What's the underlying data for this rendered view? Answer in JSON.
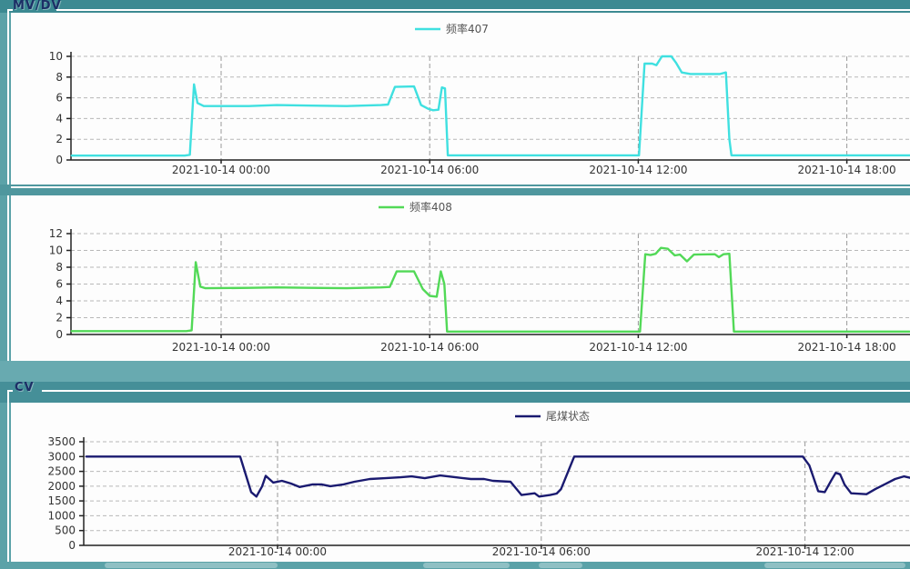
{
  "sections": {
    "mvdv": {
      "label": "MV/DV"
    },
    "cv": {
      "label": "CV"
    }
  },
  "colors": {
    "page_teal": "#5ba2a8",
    "header_bar": "#3c8a92",
    "separator_bar": "#4f979e",
    "gap_teal": "#68aab0",
    "cv_bar": "#458f98",
    "panel_bg": "#fdfdfd",
    "axis": "#222222",
    "grid_horizontal": "#b8b8b8",
    "grid_vertical": "#999999",
    "tick_label": "#333333",
    "legend_text": "#555555"
  },
  "chart_data": [
    {
      "type": "line",
      "legend": "频率407",
      "color": "#3fe0e0",
      "x_unit": "hours since 2021-10-14 00:00",
      "ymax": 10,
      "yticks": [
        0,
        2,
        4,
        6,
        8,
        10
      ],
      "xticks": [
        {
          "t": 0,
          "label": "2021-10-14 00:00"
        },
        {
          "t": 6,
          "label": "2021-10-14 06:00"
        },
        {
          "t": 12,
          "label": "2021-10-14 12:00"
        },
        {
          "t": 18,
          "label": "2021-10-14 18:00"
        }
      ],
      "points": [
        [
          -4.3,
          0.42
        ],
        [
          -1.05,
          0.42
        ],
        [
          -0.9,
          0.5
        ],
        [
          -0.78,
          7.3
        ],
        [
          -0.68,
          5.5
        ],
        [
          -0.5,
          5.2
        ],
        [
          0.8,
          5.2
        ],
        [
          1.6,
          5.3
        ],
        [
          2.6,
          5.25
        ],
        [
          3.6,
          5.2
        ],
        [
          4.6,
          5.3
        ],
        [
          4.8,
          5.35
        ],
        [
          5.0,
          7.05
        ],
        [
          5.55,
          7.1
        ],
        [
          5.75,
          5.3
        ],
        [
          5.95,
          4.95
        ],
        [
          6.1,
          4.8
        ],
        [
          6.25,
          4.85
        ],
        [
          6.35,
          7.0
        ],
        [
          6.44,
          6.9
        ],
        [
          6.52,
          0.45
        ],
        [
          12.02,
          0.45
        ],
        [
          12.18,
          9.3
        ],
        [
          12.4,
          9.3
        ],
        [
          12.52,
          9.15
        ],
        [
          12.68,
          10.0
        ],
        [
          12.95,
          10.0
        ],
        [
          13.08,
          9.4
        ],
        [
          13.25,
          8.45
        ],
        [
          13.5,
          8.3
        ],
        [
          14.35,
          8.3
        ],
        [
          14.52,
          8.45
        ],
        [
          14.62,
          2.0
        ],
        [
          14.68,
          0.45
        ],
        [
          19.8,
          0.45
        ]
      ]
    },
    {
      "type": "line",
      "legend": "频率408",
      "color": "#52d957",
      "x_unit": "hours since 2021-10-14 00:00",
      "ymax": 12,
      "yticks": [
        0,
        2,
        4,
        6,
        8,
        10,
        12
      ],
      "xticks": [
        {
          "t": 0,
          "label": "2021-10-14 00:00"
        },
        {
          "t": 6,
          "label": "2021-10-14 06:00"
        },
        {
          "t": 12,
          "label": "2021-10-14 12:00"
        },
        {
          "t": 18,
          "label": "2021-10-14 18:00"
        }
      ],
      "points": [
        [
          -4.3,
          0.4
        ],
        [
          -1.0,
          0.4
        ],
        [
          -0.85,
          0.5
        ],
        [
          -0.73,
          8.6
        ],
        [
          -0.6,
          5.7
        ],
        [
          -0.45,
          5.5
        ],
        [
          0.8,
          5.55
        ],
        [
          1.6,
          5.6
        ],
        [
          2.6,
          5.55
        ],
        [
          3.6,
          5.5
        ],
        [
          4.6,
          5.6
        ],
        [
          4.85,
          5.65
        ],
        [
          5.05,
          7.5
        ],
        [
          5.55,
          7.5
        ],
        [
          5.8,
          5.4
        ],
        [
          6.0,
          4.6
        ],
        [
          6.2,
          4.5
        ],
        [
          6.32,
          7.5
        ],
        [
          6.42,
          6.0
        ],
        [
          6.5,
          0.35
        ],
        [
          12.05,
          0.35
        ],
        [
          12.2,
          9.55
        ],
        [
          12.35,
          9.45
        ],
        [
          12.5,
          9.6
        ],
        [
          12.65,
          10.3
        ],
        [
          12.85,
          10.2
        ],
        [
          13.05,
          9.4
        ],
        [
          13.2,
          9.5
        ],
        [
          13.4,
          8.7
        ],
        [
          13.6,
          9.5
        ],
        [
          14.2,
          9.55
        ],
        [
          14.32,
          9.2
        ],
        [
          14.45,
          9.55
        ],
        [
          14.62,
          9.6
        ],
        [
          14.75,
          0.35
        ],
        [
          19.8,
          0.35
        ]
      ]
    },
    {
      "type": "line",
      "legend": "尾煤状态",
      "color": "#1a1a70",
      "x_unit": "hours since 2021-10-14 00:00",
      "ymax": 3500,
      "yticks": [
        0,
        500,
        1000,
        1500,
        2000,
        2500,
        3000,
        3500
      ],
      "xticks": [
        {
          "t": 0,
          "label": "2021-10-14 00:00"
        },
        {
          "t": 6,
          "label": "2021-10-14 06:00"
        },
        {
          "t": 12,
          "label": "2021-10-14 12:00"
        }
      ],
      "points": [
        [
          -4.35,
          3000
        ],
        [
          -0.85,
          3000
        ],
        [
          -0.6,
          1800
        ],
        [
          -0.48,
          1650
        ],
        [
          -0.35,
          2000
        ],
        [
          -0.27,
          2350
        ],
        [
          -0.1,
          2120
        ],
        [
          0.1,
          2180
        ],
        [
          0.3,
          2090
        ],
        [
          0.5,
          1970
        ],
        [
          0.8,
          2060
        ],
        [
          1.0,
          2060
        ],
        [
          1.2,
          2000
        ],
        [
          1.5,
          2060
        ],
        [
          1.75,
          2150
        ],
        [
          2.1,
          2240
        ],
        [
          2.45,
          2270
        ],
        [
          2.8,
          2300
        ],
        [
          3.05,
          2330
        ],
        [
          3.35,
          2270
        ],
        [
          3.7,
          2360
        ],
        [
          4.05,
          2300
        ],
        [
          4.4,
          2240
        ],
        [
          4.7,
          2240
        ],
        [
          4.9,
          2180
        ],
        [
          5.3,
          2150
        ],
        [
          5.55,
          1700
        ],
        [
          5.85,
          1760
        ],
        [
          5.95,
          1650
        ],
        [
          6.2,
          1700
        ],
        [
          6.35,
          1750
        ],
        [
          6.45,
          1900
        ],
        [
          6.75,
          3000
        ],
        [
          11.95,
          3000
        ],
        [
          12.1,
          2700
        ],
        [
          12.3,
          1830
        ],
        [
          12.45,
          1800
        ],
        [
          12.6,
          2200
        ],
        [
          12.7,
          2450
        ],
        [
          12.8,
          2400
        ],
        [
          12.9,
          2050
        ],
        [
          13.05,
          1760
        ],
        [
          13.4,
          1730
        ],
        [
          13.6,
          1900
        ],
        [
          13.85,
          2090
        ],
        [
          14.05,
          2240
        ],
        [
          14.25,
          2330
        ],
        [
          14.4,
          2280
        ]
      ]
    }
  ]
}
